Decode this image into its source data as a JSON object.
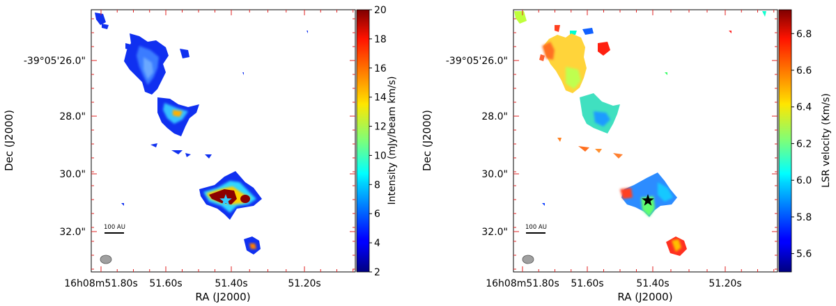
{
  "chart_data": [
    {
      "type": "heatmap",
      "panel": "left",
      "xlabel": "RA (J2000)",
      "ylabel": "Dec (J2000)",
      "x_ticks": [
        "16h08m51.80s",
        "51.60s",
        "51.40s",
        "51.20s"
      ],
      "y_ticks": [
        "-39°05'26.0\"",
        "28.0\"",
        "30.0\"",
        "32.0\""
      ],
      "colorbar": {
        "label": "Intensity (mJy/beam km/s)",
        "colormap": "jet",
        "min": 2,
        "max": 20,
        "ticks": [
          "2",
          "4",
          "6",
          "8",
          "10",
          "12",
          "14",
          "16",
          "18",
          "20"
        ]
      },
      "scale_bar_label": "100 AU",
      "star_color": "#33ccff",
      "beam_color": "#a0a0a0"
    },
    {
      "type": "heatmap",
      "panel": "right",
      "xlabel": "RA (J2000)",
      "ylabel": "Dec (J2000)",
      "x_ticks": [
        "16h08m51.80s",
        "51.60s",
        "51.40s",
        "51.20s"
      ],
      "y_ticks": [
        "-39°05'26.0\"",
        "28.0\"",
        "30.0\"",
        "32.0\""
      ],
      "colorbar": {
        "label": "LSR velocity (Km/s)",
        "colormap": "jet",
        "min": 5.5,
        "max": 6.93,
        "ticks": [
          "5.6",
          "5.8",
          "6.0",
          "6.2",
          "6.4",
          "6.6",
          "6.8"
        ]
      },
      "scale_bar_label": "100 AU",
      "star_color": "#000000",
      "beam_color": "#a0a0a0"
    }
  ]
}
